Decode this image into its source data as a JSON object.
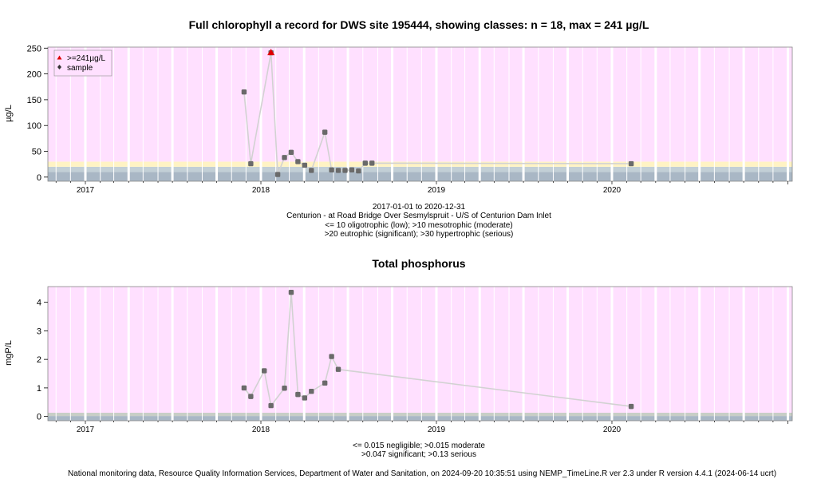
{
  "footer": "National monitoring data, Resource Quality Information Services, Department of Water and Sanitation, on 2024-09-20 10:35:51 using NEMP_TimeLine.R ver 2.3 under R version 4.4.1 (2024-06-14 ucrt)",
  "colors": {
    "panel_bg": "#ffe0ff",
    "band_oligo": "#a9b7c5",
    "band_meso": "#c2cfd6",
    "band_eutro": "#fff3c4",
    "band_tp_low": "#a9b7c5",
    "band_tp_mid": "#c8cec7",
    "point": "#6a6a6a",
    "line": "#d2d2d2",
    "max_marker": "#dd0000",
    "grid": "#ffffff"
  },
  "chart_data": [
    {
      "type": "line",
      "title": "Full chlorophyll a record for DWS site 195444, showing classes: n = 18, max = 241 µg/L",
      "ylabel": "µg/L",
      "xlabel_lines": [
        "2017-01-01 to 2020-12-31",
        "Centurion - at Road Bridge Over Sesmylspruit - U/S of Centurion Dam Inlet",
        "<= 10 oligotrophic (low); >10 mesotrophic (moderate)",
        ">20 eutrophic (significant); >30 hypertrophic (serious)"
      ],
      "x_ticks": [
        "2017",
        "2018",
        "2019",
        "2020"
      ],
      "y_ticks": [
        "0",
        "50",
        "100",
        "150",
        "200",
        "250"
      ],
      "xlim": [
        "2016-10-15",
        "2021-01-10"
      ],
      "ylim": [
        -8,
        252
      ],
      "bands": [
        {
          "from": -8,
          "to": 10,
          "color": "band_oligo"
        },
        {
          "from": 10,
          "to": 20,
          "color": "band_meso"
        },
        {
          "from": 20,
          "to": 30,
          "color": "band_eutro"
        },
        {
          "from": 30,
          "to": 252,
          "color": "panel_bg"
        }
      ],
      "legend": {
        "position": "top-left",
        "entries": [
          {
            "symbol": "triangle",
            "label": ">=241µg/L"
          },
          {
            "symbol": "diamond",
            "label": "sample"
          }
        ]
      },
      "series": [
        {
          "values": [
            {
              "x": "2017-11-27",
              "y": 165
            },
            {
              "x": "2017-12-11",
              "y": 26
            },
            {
              "x": "2018-01-22",
              "y": 241
            },
            {
              "x": "2018-02-05",
              "y": 5
            },
            {
              "x": "2018-02-19",
              "y": 38
            },
            {
              "x": "2018-03-05",
              "y": 48
            },
            {
              "x": "2018-03-19",
              "y": 30
            },
            {
              "x": "2018-04-02",
              "y": 23
            },
            {
              "x": "2018-04-16",
              "y": 13
            },
            {
              "x": "2018-05-14",
              "y": 87
            },
            {
              "x": "2018-05-28",
              "y": 14
            },
            {
              "x": "2018-06-11",
              "y": 13
            },
            {
              "x": "2018-06-25",
              "y": 13
            },
            {
              "x": "2018-07-09",
              "y": 14
            },
            {
              "x": "2018-07-23",
              "y": 12
            },
            {
              "x": "2018-08-06",
              "y": 27
            },
            {
              "x": "2018-08-20",
              "y": 27
            },
            {
              "x": "2020-02-10",
              "y": 26
            }
          ]
        }
      ],
      "max_points": [
        {
          "x": "2018-01-22",
          "y": 241
        }
      ]
    },
    {
      "type": "line",
      "title": "Total phosphorus",
      "ylabel": "mgP/L",
      "xlabel_lines": [
        "<= 0.015 negligible; >0.015 moderate",
        ">0.047 significant; >0.13 serious"
      ],
      "x_ticks": [
        "2017",
        "2018",
        "2019",
        "2020"
      ],
      "y_ticks": [
        "0",
        "1",
        "2",
        "3",
        "4"
      ],
      "xlim": [
        "2016-10-15",
        "2021-01-10"
      ],
      "ylim": [
        -0.15,
        4.55
      ],
      "bands": [
        {
          "from": -0.15,
          "to": 0.015,
          "color": "band_tp_low"
        },
        {
          "from": 0.015,
          "to": 0.13,
          "color": "band_tp_mid"
        },
        {
          "from": 0.13,
          "to": 4.55,
          "color": "panel_bg"
        }
      ],
      "series": [
        {
          "values": [
            {
              "x": "2017-11-27",
              "y": 1.0
            },
            {
              "x": "2017-12-11",
              "y": 0.7
            },
            {
              "x": "2018-01-08",
              "y": 1.6
            },
            {
              "x": "2018-01-22",
              "y": 0.38
            },
            {
              "x": "2018-02-19",
              "y": 0.99
            },
            {
              "x": "2018-03-05",
              "y": 4.35
            },
            {
              "x": "2018-03-19",
              "y": 0.77
            },
            {
              "x": "2018-04-02",
              "y": 0.65
            },
            {
              "x": "2018-04-16",
              "y": 0.88
            },
            {
              "x": "2018-05-14",
              "y": 1.17
            },
            {
              "x": "2018-05-28",
              "y": 2.1
            },
            {
              "x": "2018-06-11",
              "y": 1.65
            },
            {
              "x": "2020-02-10",
              "y": 0.35
            }
          ]
        }
      ]
    }
  ]
}
